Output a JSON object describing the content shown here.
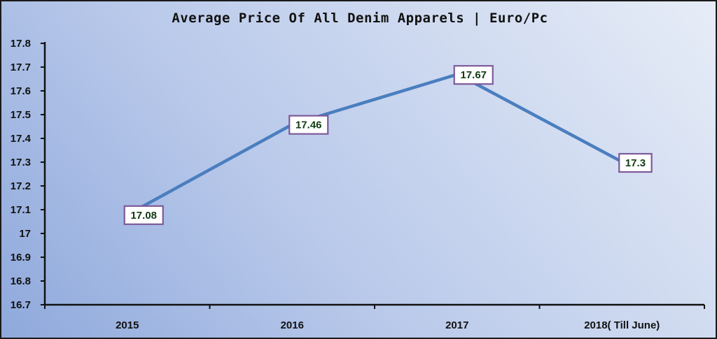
{
  "chart_data": {
    "type": "line",
    "title": "Average Price Of All Denim Apparels | Euro/Pc",
    "categories": [
      "2015",
      "2016",
      "2017",
      "2018( Till June)"
    ],
    "series": [
      {
        "values": [
          17.08,
          17.46,
          17.67,
          17.3
        ]
      }
    ],
    "data_labels": [
      "17.08",
      "17.46",
      "17.67",
      "17.3"
    ],
    "y_ticks": [
      "17.8",
      "17.7",
      "17.6",
      "17.5",
      "17.4",
      "17.3",
      "17.2",
      "17.1",
      "17",
      "16.9",
      "16.8",
      "16.7"
    ],
    "ylim": [
      16.7,
      17.8
    ],
    "grid": false,
    "legend": "none",
    "colors": {
      "line": "#4a7ebf",
      "label_border": "#7d5a9a",
      "label_fill": "#ffffff",
      "label_text": "#123a12"
    }
  }
}
